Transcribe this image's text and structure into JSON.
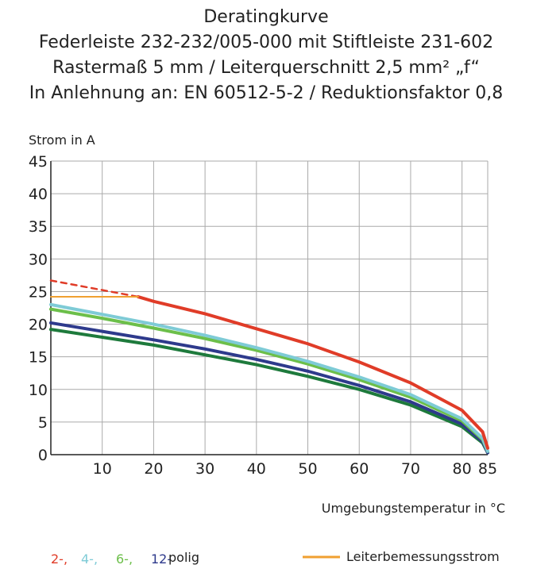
{
  "chart_data": {
    "type": "line",
    "title": [
      "Deratingkurve",
      "Federleiste 232-232/005-000 mit Stiftleiste 231-602",
      "Rastermaß 5 mm / Leiterquerschnitt 2,5 mm² „f“",
      "In Anlehnung an: EN 60512-5-2 / Reduktionsfaktor 0,8"
    ],
    "y_label": "Strom in A",
    "x_label": "Umgebungstemperatur in °C",
    "xlim": [
      0,
      85
    ],
    "ylim": [
      0,
      45
    ],
    "xticks": [
      10,
      20,
      30,
      40,
      50,
      60,
      70,
      80,
      85
    ],
    "yticks": [
      0,
      5,
      10,
      15,
      20,
      25,
      30,
      35,
      40,
      45
    ],
    "grid": true,
    "legend_suffix": "polig",
    "series": [
      {
        "color": "#1e7a3c",
        "x": [
          0,
          10,
          20,
          30,
          40,
          50,
          60,
          70,
          80,
          84,
          85
        ],
        "values": [
          19.2,
          18,
          16.8,
          15.3,
          13.8,
          12,
          10,
          7.6,
          4.3,
          1.8,
          0.3
        ]
      },
      {
        "name": "12-",
        "color": "#2e3a8c",
        "x": [
          0,
          10,
          20,
          30,
          40,
          50,
          60,
          70,
          80,
          84,
          85
        ],
        "values": [
          20.2,
          18.9,
          17.6,
          16.2,
          14.6,
          12.8,
          10.6,
          8.1,
          4.7,
          2,
          0.3
        ]
      },
      {
        "name": "6-,",
        "color": "#6cbf4a",
        "x": [
          0,
          10,
          20,
          30,
          40,
          50,
          60,
          70,
          80,
          84,
          85
        ],
        "values": [
          22.3,
          20.9,
          19.4,
          17.8,
          16,
          13.9,
          11.5,
          8.8,
          5.2,
          2.3,
          0.5
        ]
      },
      {
        "name": "4-,",
        "color": "#7ecbd6",
        "x": [
          0,
          10,
          20,
          30,
          40,
          50,
          60,
          70,
          80,
          84,
          85
        ],
        "values": [
          23,
          21.5,
          20,
          18.3,
          16.4,
          14.3,
          11.9,
          9.2,
          5.5,
          2.5,
          0.5
        ]
      },
      {
        "name": "2-,",
        "color": "#e03c28",
        "x": [
          17,
          20,
          30,
          40,
          50,
          60,
          70,
          80,
          84,
          85
        ],
        "values": [
          24.2,
          23.5,
          21.6,
          19.3,
          17,
          14.2,
          11,
          6.8,
          3.5,
          1
        ]
      },
      {
        "color": "#e03c28",
        "dashed": true,
        "x": [
          0,
          17
        ],
        "values": [
          26.7,
          24.2
        ]
      },
      {
        "name": "Leiterbemessungsstrom",
        "color": "#f0a030",
        "x": [
          0,
          17
        ],
        "values": [
          24.2,
          24.2
        ]
      }
    ]
  }
}
